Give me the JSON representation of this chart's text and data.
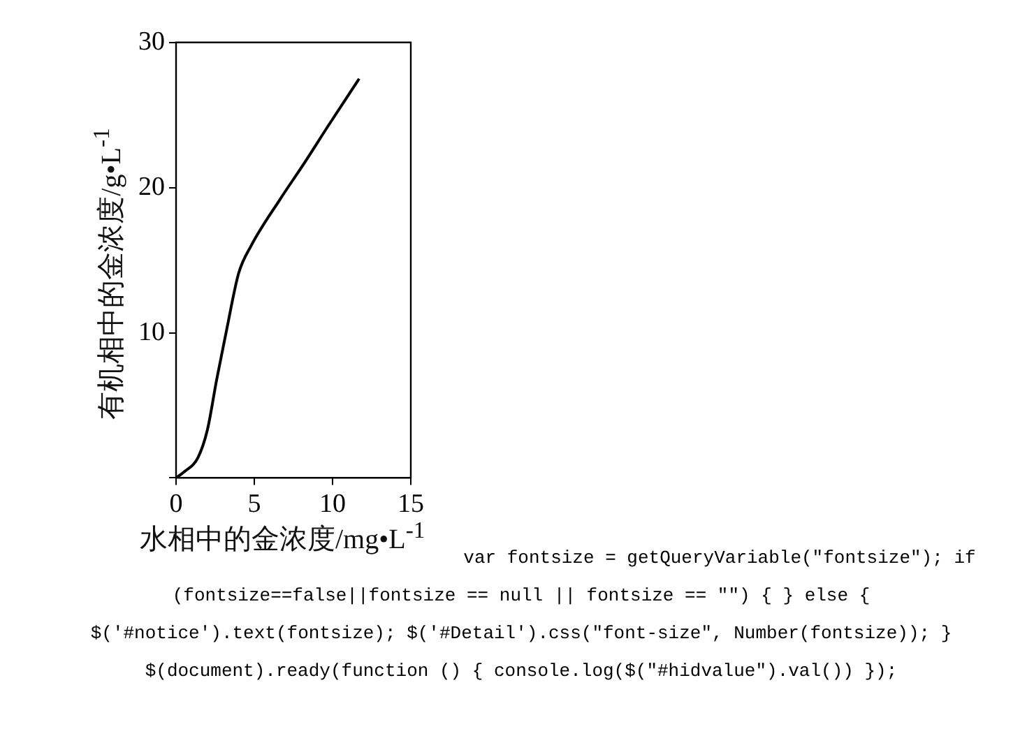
{
  "chart_data": {
    "type": "line",
    "xlabel": "水相中的金浓度/mg•L$^{-1}$",
    "ylabel": "有机相中的金浓度/g•L$^{-1}$",
    "x": [
      0,
      0.5,
      1.4,
      2.0,
      2.6,
      3.25,
      4.0,
      4.8,
      6.65,
      8.2,
      9.75,
      11.7
    ],
    "series": [
      {
        "color": "#000000",
        "values": [
          0,
          0.4,
          1.4,
          3.3,
          6.8,
          10.3,
          14.1,
          16.0,
          19.2,
          21.7,
          24.3,
          27.5
        ]
      }
    ],
    "xlim": [
      0,
      15
    ],
    "xticks": [
      0,
      5,
      10,
      15
    ],
    "ylim": [
      0,
      30
    ],
    "yticks": [
      {
        "value": 0,
        "label": null
      },
      10,
      20,
      30
    ],
    "grid": false,
    "legend": false,
    "marker": "none",
    "line_style": "solid",
    "annotations": [
      "var fontsize = getQueryVariable(\"fontsize\"); if (fontsize==false||fontsize == null || fontsize == \"\") { } else { $('#notice').text(fontsize); $('#Detail').css(\"font-size\", Number(fontsize)); } $(document).ready(function () { console.log($(\"#hidvalue\").val()) });"
    ]
  }
}
